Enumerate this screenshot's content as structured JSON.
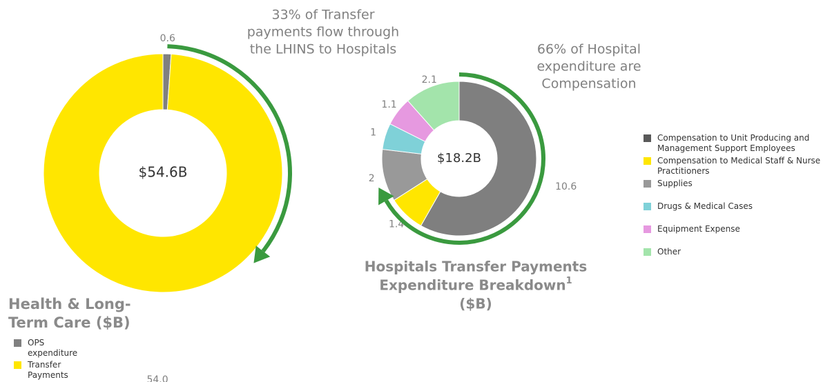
{
  "chart_data": [
    {
      "type": "pie",
      "title_lines": [
        "Health & Long-",
        "Term Care ($B)"
      ],
      "center_label": "$54.6B",
      "annotation_lines": [
        "33% of Transfer",
        "payments flow through",
        "the LHINS to Hospitals"
      ],
      "categories": [
        "OPS expenditure",
        "Transfer Payments"
      ],
      "values": [
        0.6,
        54.0
      ],
      "value_labels": [
        "0.6",
        "54.0"
      ],
      "colors": [
        "#808080",
        "#ffe600"
      ]
    },
    {
      "type": "pie",
      "title_lines": [
        "Hospitals Transfer Payments",
        "Expenditure Breakdown",
        "($B)"
      ],
      "title_footnote": "1",
      "center_label": "$18.2B",
      "annotation_lines": [
        "66% of Hospital",
        "expenditure are",
        "Compensation"
      ],
      "categories": [
        "Compensation to Unit Producing and Management Support Employees",
        "Compensation to Medical Staff & Nurse Practitioners",
        "Supplies",
        "Drugs & Medical Cases",
        "Equipment Expense",
        "Other"
      ],
      "values": [
        10.6,
        1.4,
        2.0,
        1.0,
        1.1,
        2.1
      ],
      "colors": [
        "#7f7f7f",
        "#ffe600",
        "#999999",
        "#7fd1d8",
        "#e699e0",
        "#a3e4ab"
      ]
    }
  ]
}
